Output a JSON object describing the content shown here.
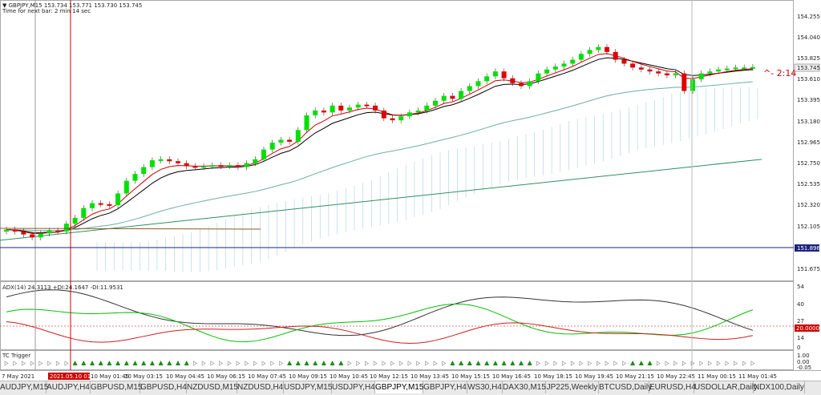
{
  "window": {
    "symbol_line": "▼ GBPJPY,M15  153.734 153.771 153.730 153.745",
    "bar_timer_line": "Time for next bar: 2 min 14 sec",
    "countdown_label": "^- 2:14"
  },
  "price_axis": {
    "ticks": [
      "154.255",
      "154.040",
      "153.825",
      "153.610",
      "153.395",
      "153.180",
      "152.965",
      "152.750",
      "152.535",
      "152.320",
      "152.105",
      "151.675"
    ],
    "current_price": "153.745",
    "line_price": "151.896"
  },
  "adx_panel": {
    "title": "ADX(14) 24.3113 +DI:24.1647 -DI:11.9531",
    "ticks": [
      "54",
      "40",
      "27",
      "14",
      "0"
    ],
    "level_label": "20.0000"
  },
  "tc_panel": {
    "title": "TC Trigger",
    "ticks": [
      "1.00",
      "0.00",
      "-0.05"
    ]
  },
  "time_axis": {
    "start_label": "7 May 2021",
    "crosshair_label": "2021.05.10 01:15",
    "labels": [
      "10 May 01:45",
      "10 May 03:15",
      "10 May 04:45",
      "10 May 06:15",
      "10 May 07:45",
      "10 May 09:15",
      "10 May 10:45",
      "10 May 12:15",
      "10 May 13:45",
      "10 May 15:15",
      "10 May 16:45",
      "10 May 18:15",
      "10 May 19:45",
      "10 May 21:15",
      "10 May 22:45",
      "11 May 00:15",
      "11 May 01:45"
    ]
  },
  "tabs": [
    {
      "label": "AUDJPY,M15",
      "active": false
    },
    {
      "label": "AUDJPY,H4",
      "active": false
    },
    {
      "label": "GBPUSD,M15",
      "active": false
    },
    {
      "label": "GBPUSD,H4",
      "active": false
    },
    {
      "label": "NZDUSD,M15",
      "active": false
    },
    {
      "label": "NZDUSD,H4",
      "active": false
    },
    {
      "label": "USDJPY,M15",
      "active": false
    },
    {
      "label": "USDJPY,H4",
      "active": false
    },
    {
      "label": "GBPJPY,M15",
      "active": true
    },
    {
      "label": "GBPJPY,H4",
      "active": false
    },
    {
      "label": "WS30,H4",
      "active": false
    },
    {
      "label": "DAX30,M15",
      "active": false
    },
    {
      "label": "JP225,Weekly",
      "active": false
    },
    {
      "label": "BTCUSD,Daily",
      "active": false
    },
    {
      "label": "EURUSD,H4",
      "active": false
    },
    {
      "label": "USDOLLAR,Daily",
      "active": false
    },
    {
      "label": "NDX100,Daily",
      "active": false
    }
  ],
  "colors": {
    "bull_candle": "#00e000",
    "bear_candle": "#e00000",
    "ema_fast": "#cc0000",
    "ema_mid": "#000000",
    "ema_slow": "#6ab0a0",
    "ma_long": "#2f8f5f",
    "cloud": "#a8d0e0",
    "adx": "#333333",
    "plus_di": "#00c000",
    "minus_di": "#cc2020",
    "crosshair": "#cc0000",
    "current_price_bg": "#f0f0f0",
    "line_price_bg": "#1a237e",
    "level_bg": "#cc0000"
  },
  "chart_data": {
    "type": "candlestick",
    "symbol": "GBPJPY",
    "timeframe": "M15",
    "ylim": [
      151.6,
      154.35
    ],
    "closes": [
      152.08,
      152.06,
      152.03,
      152.0,
      152.04,
      152.07,
      152.06,
      152.14,
      152.2,
      152.3,
      152.35,
      152.34,
      152.33,
      152.45,
      152.58,
      152.65,
      152.72,
      152.79,
      152.8,
      152.78,
      152.76,
      152.73,
      152.72,
      152.73,
      152.74,
      152.73,
      152.74,
      152.72,
      152.76,
      152.8,
      152.9,
      152.97,
      153.0,
      152.98,
      153.1,
      153.25,
      153.3,
      153.28,
      153.35,
      153.3,
      153.33,
      153.36,
      153.35,
      153.3,
      153.22,
      153.2,
      153.24,
      153.28,
      153.3,
      153.35,
      153.4,
      153.45,
      153.42,
      153.5,
      153.55,
      153.6,
      153.65,
      153.7,
      153.63,
      153.58,
      153.55,
      153.6,
      153.68,
      153.72,
      153.75,
      153.78,
      153.82,
      153.88,
      153.92,
      153.95,
      153.9,
      153.82,
      153.78,
      153.74,
      153.72,
      153.7,
      153.68,
      153.66,
      153.68,
      153.5,
      153.62,
      153.68,
      153.7,
      153.72,
      153.73,
      153.74,
      153.74,
      153.745
    ]
  }
}
